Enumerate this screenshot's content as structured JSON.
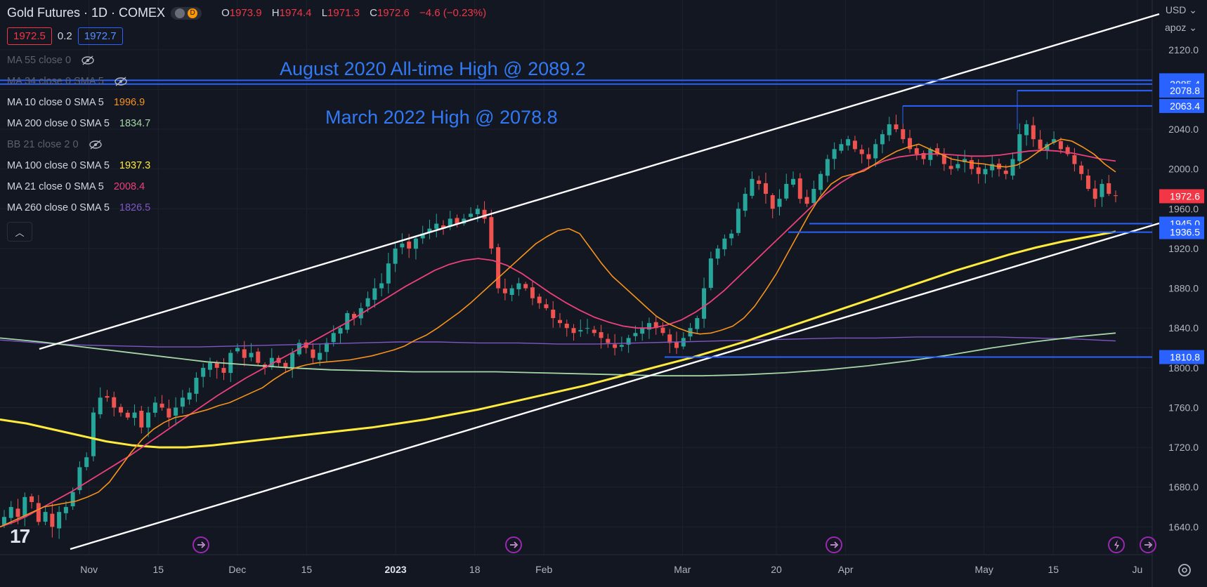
{
  "header": {
    "symbol": "Gold Futures · 1D · COMEX",
    "open": "1973.9",
    "high": "1974.4",
    "low": "1971.3",
    "close": "1972.6",
    "change": "−4.6 (−0.23%)"
  },
  "price_boxes": {
    "bid": "1972.5",
    "spread": "0.2",
    "ask": "1972.7"
  },
  "indicators": [
    {
      "label": "MA 55 close 0",
      "value": "",
      "color": "#5d606b",
      "hidden": true
    },
    {
      "label": "MA 34 close 0 SMA 5",
      "value": "",
      "color": "#5d606b",
      "hidden": true
    },
    {
      "label": "MA 10 close 0 SMA 5",
      "value": "1996.9",
      "color": "#f7931a",
      "hidden": false
    },
    {
      "label": "MA 200 close 0 SMA 5",
      "value": "1834.7",
      "color": "#a5d6a7",
      "hidden": false
    },
    {
      "label": "BB 21 close 2 0",
      "value": "",
      "color": "#5d606b",
      "hidden": true
    },
    {
      "label": "MA 100 close 0 SMA 5",
      "value": "1937.3",
      "color": "#ffeb3b",
      "hidden": false
    },
    {
      "label": "MA 21 close 0 SMA 5",
      "value": "2008.4",
      "color": "#ec407a",
      "hidden": false
    },
    {
      "label": "MA 260 close 0 SMA 5",
      "value": "1826.5",
      "color": "#7e57c2",
      "hidden": false
    }
  ],
  "axis_menu": {
    "currency": "USD",
    "user": "apoz"
  },
  "colors": {
    "bg": "#131722",
    "up": "#26a69a",
    "down": "#ef5350",
    "grid": "#1e222d",
    "annotation": "#3179f5",
    "hline": "#2962ff",
    "channel": "#ffffff",
    "ma10": "#f7931a",
    "ma21": "#ec407a",
    "ma100": "#ffeb3b",
    "ma200": "#a5d6a7",
    "ma260": "#7e57c2"
  },
  "chart_data": {
    "type": "candlestick",
    "title": "Gold Futures · 1D · COMEX",
    "y_ticks": [
      1640,
      1680,
      1720,
      1760,
      1800,
      1840,
      1880,
      1920,
      1960,
      2000,
      2040,
      2080,
      2120
    ],
    "ylim": [
      1612,
      2170
    ],
    "x_ticks": [
      {
        "label": "Nov",
        "date": "2022-11-01"
      },
      {
        "label": "15",
        "date": "2022-11-15"
      },
      {
        "label": "Dec",
        "date": "2022-12-01"
      },
      {
        "label": "15",
        "date": "2022-12-15"
      },
      {
        "label": "2023",
        "date": "2023-01-02"
      },
      {
        "label": "18",
        "date": "2023-01-18"
      },
      {
        "label": "Feb",
        "date": "2023-02-01"
      },
      {
        "label": "Mar",
        "date": "2023-03-01"
      },
      {
        "label": "20",
        "date": "2023-03-20"
      },
      {
        "label": "Apr",
        "date": "2023-04-03"
      },
      {
        "label": "May",
        "date": "2023-05-01"
      },
      {
        "label": "15",
        "date": "2023-05-15"
      },
      {
        "label": "Ju",
        "date": "2023-06-01"
      }
    ],
    "candles_close": [
      1650,
      1660,
      1650,
      1670,
      1665,
      1645,
      1655,
      1640,
      1655,
      1660,
      1675,
      1700,
      1710,
      1755,
      1770,
      1770,
      1760,
      1755,
      1750,
      1755,
      1740,
      1755,
      1765,
      1760,
      1750,
      1760,
      1770,
      1775,
      1790,
      1800,
      1805,
      1800,
      1795,
      1815,
      1820,
      1810,
      1815,
      1805,
      1800,
      1810,
      1805,
      1800,
      1815,
      1825,
      1820,
      1810,
      1815,
      1825,
      1835,
      1840,
      1855,
      1850,
      1860,
      1870,
      1880,
      1885,
      1905,
      1920,
      1925,
      1920,
      1930,
      1935,
      1940,
      1945,
      1940,
      1950,
      1945,
      1950,
      1955,
      1960,
      1950,
      1920,
      1880,
      1875,
      1880,
      1885,
      1880,
      1870,
      1865,
      1860,
      1850,
      1845,
      1840,
      1835,
      1838,
      1840,
      1835,
      1830,
      1825,
      1820,
      1823,
      1830,
      1835,
      1840,
      1845,
      1840,
      1835,
      1825,
      1820,
      1830,
      1840,
      1850,
      1880,
      1910,
      1920,
      1930,
      1935,
      1960,
      1975,
      1990,
      1985,
      1975,
      1960,
      1970,
      1985,
      1990,
      1970,
      1965,
      1980,
      1995,
      2010,
      2020,
      2025,
      2030,
      2020,
      2015,
      2010,
      2025,
      2035,
      2045,
      2040,
      2030,
      2020,
      2015,
      2010,
      2020,
      2015,
      2005,
      2000,
      2005,
      2010,
      2000,
      1995,
      2000,
      2005,
      2000,
      1995,
      2010,
      2035,
      2045,
      2030,
      2020,
      2025,
      2030,
      2020,
      2015,
      2005,
      1995,
      1980,
      1970,
      1985,
      1975,
      1973
    ],
    "ma10": [
      1640,
      1645,
      1650,
      1655,
      1660,
      1662,
      1664,
      1666,
      1670,
      1675,
      1685,
      1700,
      1715,
      1728,
      1738,
      1745,
      1750,
      1752,
      1755,
      1758,
      1762,
      1765,
      1770,
      1775,
      1780,
      1788,
      1795,
      1800,
      1803,
      1805,
      1806,
      1807,
      1808,
      1810,
      1812,
      1815,
      1818,
      1822,
      1828,
      1833,
      1840,
      1848,
      1856,
      1865,
      1875,
      1885,
      1895,
      1905,
      1915,
      1925,
      1932,
      1938,
      1940,
      1935,
      1920,
      1905,
      1892,
      1882,
      1872,
      1862,
      1852,
      1845,
      1840,
      1836,
      1834,
      1835,
      1838,
      1842,
      1850,
      1862,
      1878,
      1895,
      1915,
      1935,
      1955,
      1972,
      1985,
      1992,
      1995,
      1998,
      2005,
      2012,
      2018,
      2022,
      2025,
      2020,
      2015,
      2010,
      2008,
      2006,
      2005,
      2003,
      2002,
      2004,
      2010,
      2018,
      2025,
      2030,
      2028,
      2022,
      2015,
      2005,
      1997
    ],
    "ma21": [
      1640,
      1645,
      1652,
      1660,
      1668,
      1676,
      1685,
      1694,
      1703,
      1712,
      1722,
      1732,
      1742,
      1752,
      1762,
      1772,
      1781,
      1790,
      1798,
      1806,
      1814,
      1822,
      1830,
      1838,
      1846,
      1855,
      1864,
      1873,
      1882,
      1890,
      1898,
      1904,
      1908,
      1910,
      1908,
      1903,
      1895,
      1885,
      1875,
      1866,
      1858,
      1851,
      1846,
      1842,
      1840,
      1840,
      1843,
      1848,
      1856,
      1866,
      1878,
      1892,
      1906,
      1920,
      1934,
      1948,
      1962,
      1975,
      1986,
      1995,
      2002,
      2008,
      2012,
      2014,
      2015,
      2015,
      2014,
      2013,
      2013,
      2014,
      2016,
      2018,
      2019,
      2018,
      2016,
      2013,
      2010,
      2008
    ],
    "ma100": [
      1748,
      1744,
      1738,
      1732,
      1726,
      1722,
      1720,
      1720,
      1722,
      1725,
      1728,
      1731,
      1734,
      1737,
      1740,
      1744,
      1748,
      1753,
      1758,
      1764,
      1770,
      1776,
      1782,
      1789,
      1796,
      1803,
      1810,
      1818,
      1826,
      1835,
      1844,
      1853,
      1862,
      1871,
      1880,
      1889,
      1898,
      1906,
      1914,
      1921,
      1927,
      1932,
      1937
    ],
    "ma200": [
      1830,
      1826,
      1821,
      1816,
      1811,
      1806,
      1803,
      1800,
      1798,
      1797,
      1796,
      1796,
      1796,
      1795,
      1794,
      1793,
      1792,
      1792,
      1793,
      1795,
      1798,
      1802,
      1807,
      1813,
      1820,
      1826,
      1831,
      1835
    ],
    "ma260": [
      1828,
      1825,
      1823,
      1822,
      1821,
      1821,
      1822,
      1823,
      1824,
      1825,
      1826,
      1826,
      1825,
      1825,
      1824,
      1824,
      1825,
      1826,
      1827,
      1828,
      1829,
      1830,
      1830,
      1831,
      1831,
      1831,
      1830,
      1829,
      1827
    ],
    "horizontal_levels": [
      2089.2,
      2085.4,
      2078.8,
      2063.4,
      1945.0,
      1936.5,
      1810.8
    ],
    "last_price": 1972.6,
    "annotations": [
      {
        "text": "August 2020 All-time High @ 2089.2"
      },
      {
        "text": "March 2022 High @ 2078.8"
      }
    ]
  }
}
